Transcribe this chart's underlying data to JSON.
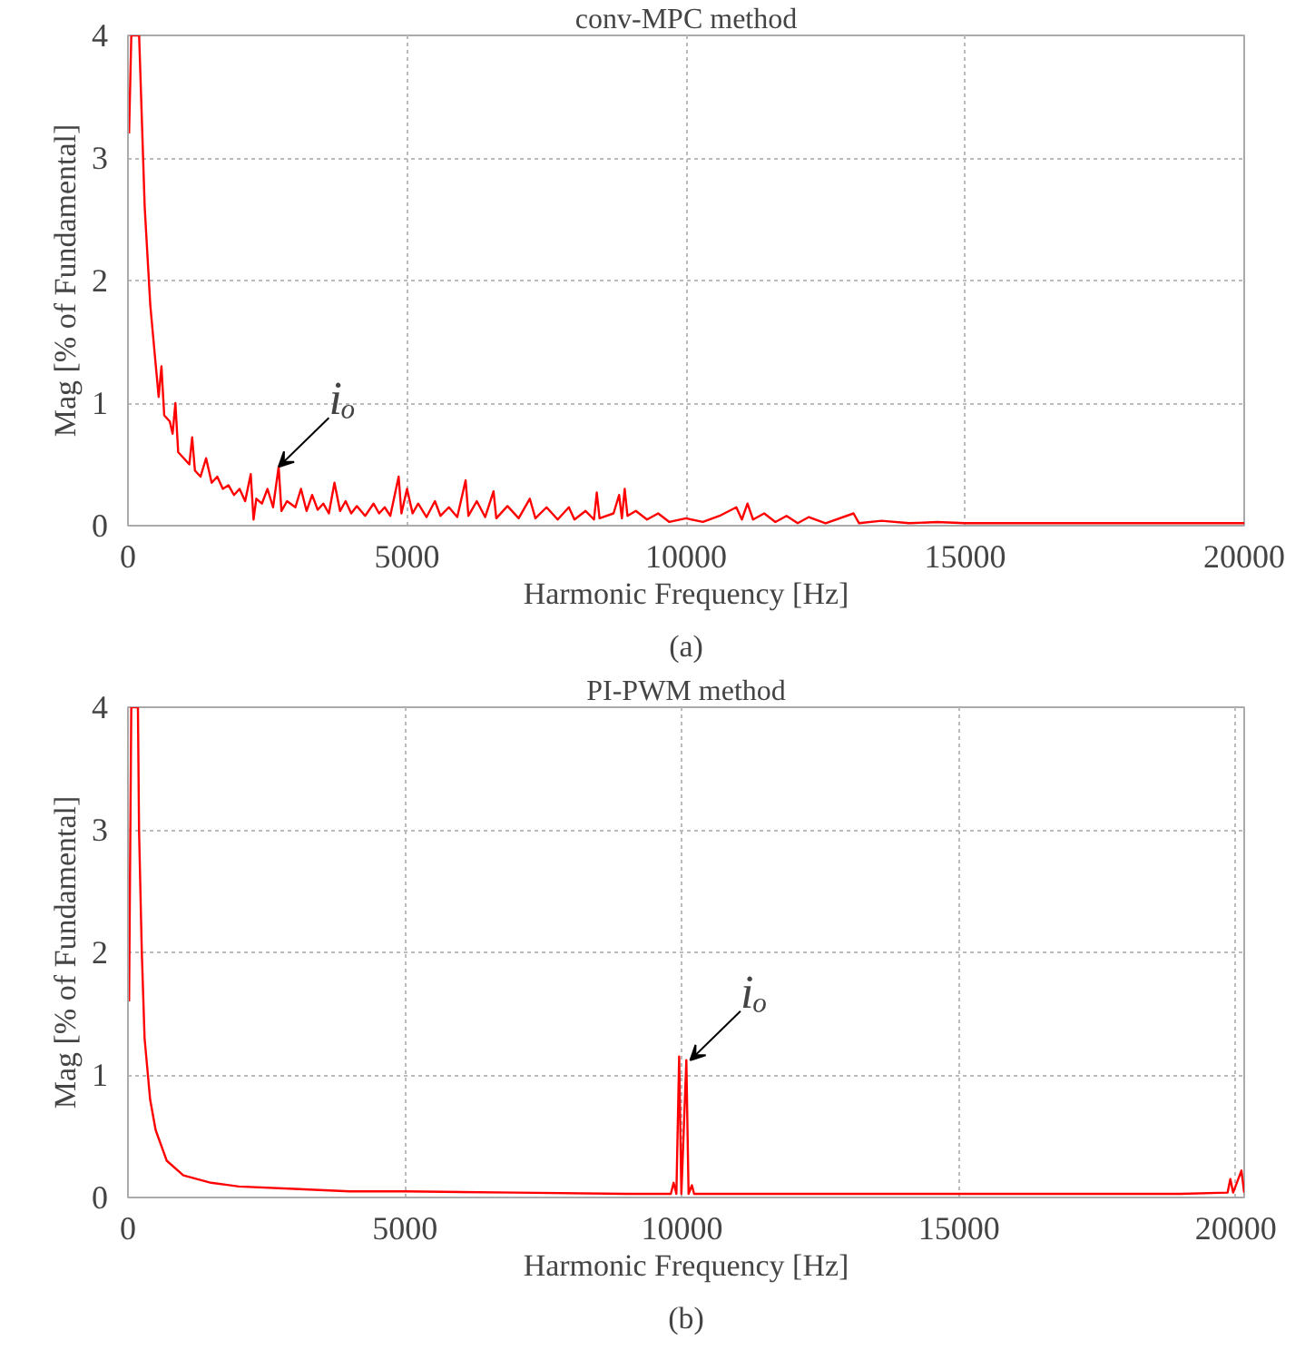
{
  "chart_data": [
    {
      "type": "line",
      "title": "conv-MPC method",
      "xlabel": "Harmonic Frequency [Hz]",
      "ylabel": "Mag [% of Fundamental]",
      "xlim": [
        0,
        20000
      ],
      "ylim": [
        0,
        4
      ],
      "xticks": [
        0,
        5000,
        10000,
        15000,
        20000
      ],
      "yticks": [
        0,
        1,
        2,
        3,
        4
      ],
      "grid": true,
      "marker": "none",
      "line_style": "solid",
      "annotations": [
        {
          "text": "iₒ",
          "x": 2700,
          "y": 0.48
        },
        "(a)"
      ],
      "series": [
        {
          "color": "#ff0000",
          "x": [
            20,
            60,
            200,
            300,
            400,
            500,
            550,
            600,
            650,
            750,
            800,
            850,
            900,
            1000,
            1100,
            1150,
            1200,
            1300,
            1400,
            1500,
            1600,
            1700,
            1800,
            1900,
            2000,
            2100,
            2200,
            2250,
            2300,
            2400,
            2500,
            2600,
            2700,
            2750,
            2850,
            3000,
            3100,
            3200,
            3300,
            3400,
            3500,
            3600,
            3700,
            3800,
            3900,
            4000,
            4100,
            4250,
            4400,
            4500,
            4600,
            4700,
            4850,
            4900,
            5000,
            5100,
            5200,
            5350,
            5500,
            5600,
            5750,
            5900,
            6050,
            6100,
            6250,
            6400,
            6550,
            6600,
            6800,
            7000,
            7200,
            7300,
            7500,
            7700,
            7900,
            8000,
            8200,
            8350,
            8400,
            8450,
            8700,
            8800,
            8850,
            8900,
            8950,
            9100,
            9300,
            9500,
            9700,
            10000,
            10300,
            10600,
            10900,
            11000,
            11100,
            11200,
            11400,
            11600,
            11800,
            12000,
            12200,
            12500,
            13000,
            13100,
            13500,
            14000,
            14500,
            15000,
            16000,
            17000,
            18000,
            19000,
            20000
          ],
          "values": [
            3.2,
            4,
            4,
            2.6,
            1.8,
            1.3,
            1.05,
            1.3,
            0.9,
            0.85,
            0.75,
            1.0,
            0.6,
            0.55,
            0.5,
            0.72,
            0.45,
            0.4,
            0.55,
            0.35,
            0.4,
            0.3,
            0.33,
            0.25,
            0.3,
            0.2,
            0.42,
            0.05,
            0.22,
            0.18,
            0.3,
            0.15,
            0.48,
            0.12,
            0.2,
            0.15,
            0.3,
            0.12,
            0.25,
            0.13,
            0.18,
            0.1,
            0.35,
            0.12,
            0.2,
            0.1,
            0.16,
            0.08,
            0.18,
            0.1,
            0.15,
            0.08,
            0.4,
            0.1,
            0.3,
            0.1,
            0.18,
            0.07,
            0.2,
            0.08,
            0.15,
            0.07,
            0.37,
            0.08,
            0.2,
            0.07,
            0.28,
            0.06,
            0.16,
            0.06,
            0.22,
            0.06,
            0.15,
            0.05,
            0.15,
            0.05,
            0.12,
            0.05,
            0.27,
            0.06,
            0.1,
            0.25,
            0.06,
            0.3,
            0.08,
            0.12,
            0.05,
            0.1,
            0.03,
            0.06,
            0.03,
            0.08,
            0.15,
            0.05,
            0.18,
            0.05,
            0.1,
            0.03,
            0.08,
            0.02,
            0.07,
            0.02,
            0.1,
            0.02,
            0.04,
            0.02,
            0.03,
            0.02,
            0.02,
            0.02,
            0.02,
            0.02,
            0.02
          ]
        }
      ]
    },
    {
      "type": "line",
      "title": "PI-PWM method",
      "xlabel": "Harmonic Frequency [Hz]",
      "ylabel": "Mag [% of Fundamental]",
      "xlim": [
        0,
        20150
      ],
      "ylim": [
        0,
        4
      ],
      "xticks": [
        0,
        5000,
        10000,
        15000,
        20000
      ],
      "yticks": [
        0,
        1,
        2,
        3,
        4
      ],
      "grid": true,
      "marker": "none",
      "line_style": "solid",
      "annotations": [
        {
          "text": "iₒ",
          "x": 10150,
          "y": 1.12
        },
        "(b)"
      ],
      "series": [
        {
          "color": "#ff0000",
          "x": [
            20,
            60,
            180,
            200,
            250,
            300,
            400,
            500,
            700,
            1000,
            1500,
            2000,
            3000,
            4000,
            5000,
            7000,
            9000,
            9800,
            9850,
            9900,
            9950,
            9990,
            10080,
            10120,
            10180,
            10220,
            12000,
            15000,
            19000,
            19850,
            19900,
            19950,
            20100,
            20150
          ],
          "values": [
            1.6,
            4,
            4,
            3.0,
            2.0,
            1.3,
            0.8,
            0.55,
            0.3,
            0.18,
            0.12,
            0.09,
            0.07,
            0.05,
            0.05,
            0.04,
            0.03,
            0.03,
            0.12,
            0.03,
            1.15,
            0.03,
            1.12,
            0.03,
            0.1,
            0.03,
            0.03,
            0.03,
            0.03,
            0.04,
            0.15,
            0.04,
            0.22,
            0.04
          ]
        }
      ]
    }
  ]
}
